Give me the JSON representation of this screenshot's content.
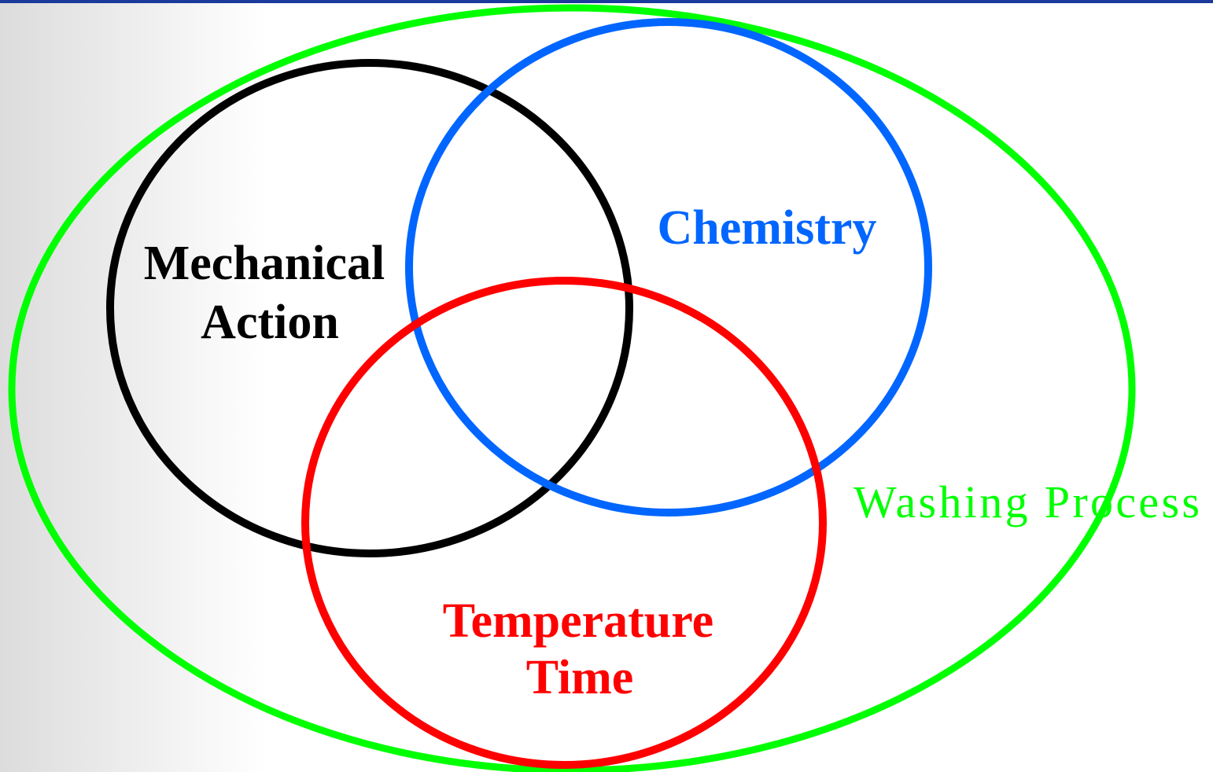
{
  "diagram": {
    "outer": {
      "label": "Washing Process"
    },
    "sets": [
      {
        "lines": [
          "Mechanical",
          "Action"
        ]
      },
      {
        "lines": [
          "Chemistry"
        ]
      },
      {
        "lines": [
          "Temperature",
          "Time"
        ]
      }
    ]
  }
}
